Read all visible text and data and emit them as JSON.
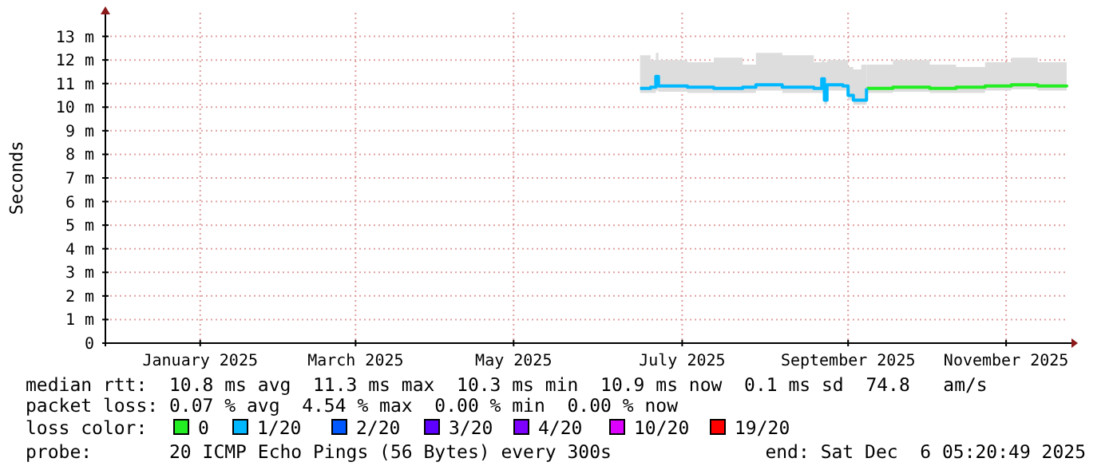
{
  "chart_data": {
    "type": "line",
    "ylabel": "Seconds",
    "legend_title": "loss color:",
    "legend": "bottom",
    "grid": true,
    "xlim": [
      "2024-12-06",
      "2025-12-06"
    ],
    "xticks": [
      {
        "value": "2025-01-11",
        "label": "January 2025"
      },
      {
        "value": "2025-03-11",
        "label": "March 2025"
      },
      {
        "value": "2025-05-10",
        "label": "May 2025"
      },
      {
        "value": "2025-07-13",
        "label": "July 2025"
      },
      {
        "value": "2025-09-14",
        "label": "September 2025"
      },
      {
        "value": "2025-11-13",
        "label": "November 2025"
      }
    ],
    "ylim": [
      0,
      14
    ],
    "yticks": [
      0,
      {
        "value": 1,
        "label": "1 m"
      },
      {
        "value": 2,
        "label": "2 m"
      },
      {
        "value": 3,
        "label": "3 m"
      },
      {
        "value": 4,
        "label": "4 m"
      },
      {
        "value": 5,
        "label": "5 m"
      },
      {
        "value": 6,
        "label": "6 m"
      },
      {
        "value": 7,
        "label": "7 m"
      },
      {
        "value": 8,
        "label": "8 m"
      },
      {
        "value": 9,
        "label": "9 m"
      },
      {
        "value": 10,
        "label": "10 m"
      },
      {
        "value": 11,
        "label": "11 m"
      },
      {
        "value": 12,
        "label": "12 m"
      },
      {
        "value": 13,
        "label": "13 m"
      }
    ],
    "series": [
      {
        "name": "0",
        "color": "#22ee22",
        "x": [
          "2025-09-21",
          "2025-10-01",
          "2025-10-15",
          "2025-10-25",
          "2025-11-05",
          "2025-11-15",
          "2025-11-25",
          "2025-12-06"
        ],
        "values": [
          10.8,
          10.85,
          10.8,
          10.85,
          10.9,
          10.95,
          10.9,
          10.95
        ],
        "lower": [
          10.6,
          10.65,
          10.6,
          10.6,
          10.7,
          10.75,
          10.7,
          10.75
        ],
        "upper": [
          11.8,
          12.0,
          11.8,
          11.7,
          11.9,
          12.1,
          11.9,
          12.0
        ]
      },
      {
        "name": "1/20",
        "color": "#00b8ff",
        "x": [
          "2025-06-27",
          "2025-07-01",
          "2025-07-03",
          "2025-07-04",
          "2025-07-15",
          "2025-07-25",
          "2025-08-05",
          "2025-08-10",
          "2025-08-20",
          "2025-09-01",
          "2025-09-04",
          "2025-09-05",
          "2025-09-06",
          "2025-09-12",
          "2025-09-14",
          "2025-09-16",
          "2025-09-19",
          "2025-09-21"
        ],
        "values": [
          10.8,
          10.85,
          11.3,
          10.9,
          10.85,
          10.8,
          10.85,
          10.95,
          10.85,
          10.8,
          11.2,
          10.3,
          10.95,
          10.9,
          10.5,
          10.3,
          10.3,
          10.8
        ],
        "lower": [
          10.6,
          10.6,
          10.7,
          10.65,
          10.6,
          10.6,
          10.6,
          10.7,
          10.6,
          10.6,
          10.6,
          10.1,
          10.7,
          10.7,
          10.3,
          10.1,
          10.1,
          10.6
        ],
        "upper": [
          12.2,
          12.0,
          12.3,
          12.0,
          11.9,
          12.1,
          11.8,
          12.3,
          12.2,
          11.9,
          12.0,
          11.9,
          12.0,
          12.0,
          11.7,
          11.6,
          11.8,
          12.0
        ]
      },
      {
        "name": "2/20",
        "color": "#0059ff"
      },
      {
        "name": "3/20",
        "color": "#5e00ff"
      },
      {
        "name": "4/20",
        "color": "#7e00ff"
      },
      {
        "name": "10/20",
        "color": "#dd00ff"
      },
      {
        "name": "19/20",
        "color": "#ff0000"
      }
    ],
    "annotations": [
      "median rtt:  10.8 ms avg  11.3 ms max  10.3 ms min  10.9 ms now  0.1 ms sd  74.8   am/s",
      "packet loss: 0.07 % avg  4.54 % max  0.00 % min  0.00 % now",
      "probe:       20 ICMP Echo Pings (56 Bytes) every 300s",
      "end: Sat Dec  6 05:20:49 2025"
    ]
  }
}
